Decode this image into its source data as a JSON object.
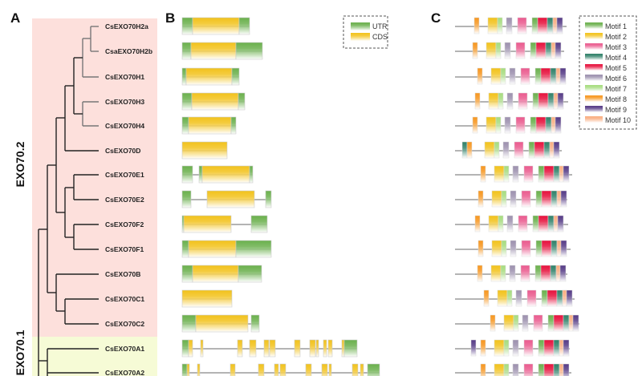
{
  "panels": {
    "a": "A",
    "b": "B",
    "c": "C"
  },
  "clades": [
    {
      "label": "EXO70.2",
      "color": "#fde0dc"
    },
    {
      "label": "EXO70.1",
      "color": "#f6fbd6"
    }
  ],
  "leaves": [
    "CsEXO70H2a",
    "CsaEXO70H2b",
    "CsEXO70H1",
    "CsEXO70H3",
    "CsEXO70H4",
    "CsEXO70D",
    "CsEXO70E1",
    "CsEXO70E2",
    "CsEXO70F2",
    "CsEXO70F1",
    "CsEXO70B",
    "CsEXO70C1",
    "CsEXO70C2",
    "CsEXO70A1",
    "CsEXO70A2"
  ],
  "gene_legend": [
    {
      "label": "UTR",
      "color": "#6ab04c"
    },
    {
      "label": "CDS",
      "color": "#f2c21b"
    }
  ],
  "motif_legend": [
    {
      "label": "Motif 1",
      "color": "#6ab04c"
    },
    {
      "label": "Motif 2",
      "color": "#f2c21b"
    },
    {
      "label": "Motif 3",
      "color": "#ea5a8e"
    },
    {
      "label": "Motif 4",
      "color": "#2e8068"
    },
    {
      "label": "Motif 5",
      "color": "#e6103c"
    },
    {
      "label": "Motif 6",
      "color": "#9c90ae"
    },
    {
      "label": "Motif 7",
      "color": "#a6dc7e"
    },
    {
      "label": "Motif 8",
      "color": "#f7961e"
    },
    {
      "label": "Motif 9",
      "color": "#553a86"
    },
    {
      "label": "Motif 10",
      "color": "#f9ad80"
    }
  ]
}
